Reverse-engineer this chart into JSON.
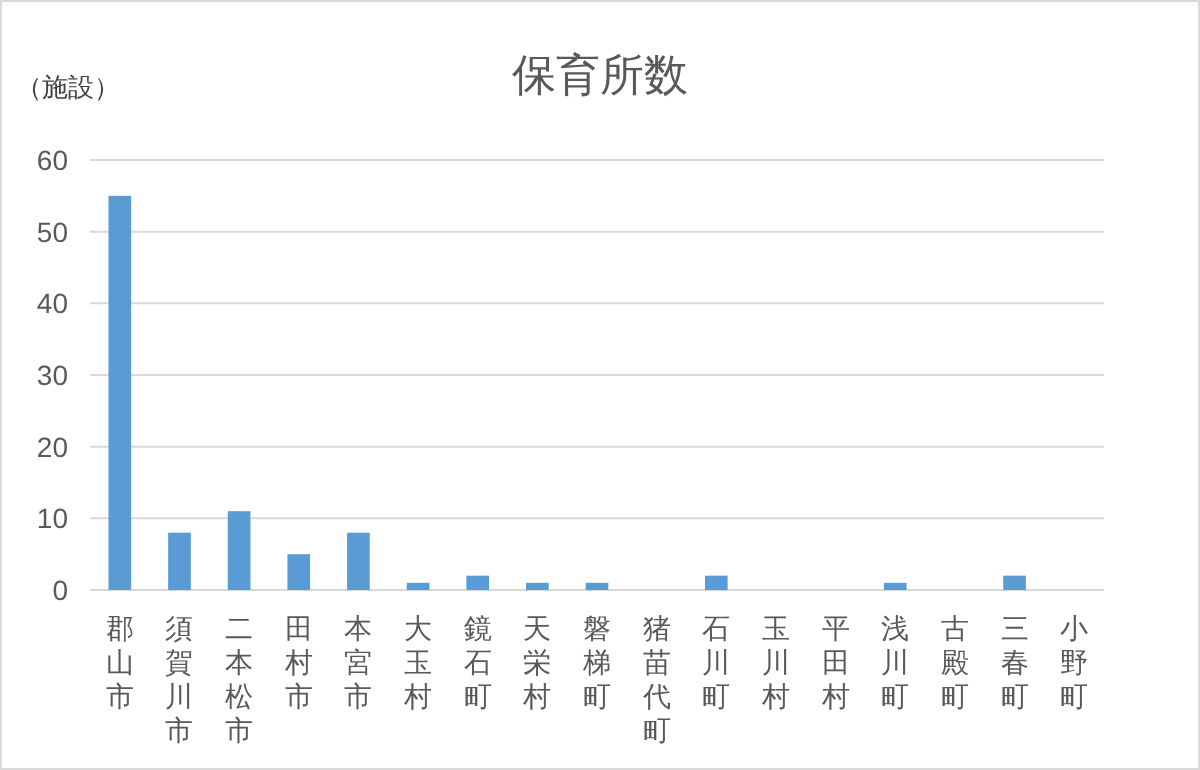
{
  "chart_data": {
    "type": "bar",
    "title": "保育所数",
    "ylabel": "（施設）",
    "categories": [
      "郡山市",
      "須賀川市",
      "二本松市",
      "田村市",
      "本宮市",
      "大玉村",
      "鏡石町",
      "天栄村",
      "磐梯町",
      "猪苗代町",
      "石川町",
      "玉川村",
      "平田村",
      "浅川町",
      "古殿町",
      "三春町",
      "小野町"
    ],
    "values": [
      55,
      8,
      11,
      5,
      8,
      1,
      2,
      1,
      1,
      0,
      2,
      0,
      0,
      1,
      0,
      2,
      0
    ],
    "color": "#5b9bd5",
    "ylim": [
      0,
      60
    ],
    "yticks": [
      0,
      10,
      20,
      30,
      40,
      50,
      60
    ],
    "grid": "y"
  }
}
